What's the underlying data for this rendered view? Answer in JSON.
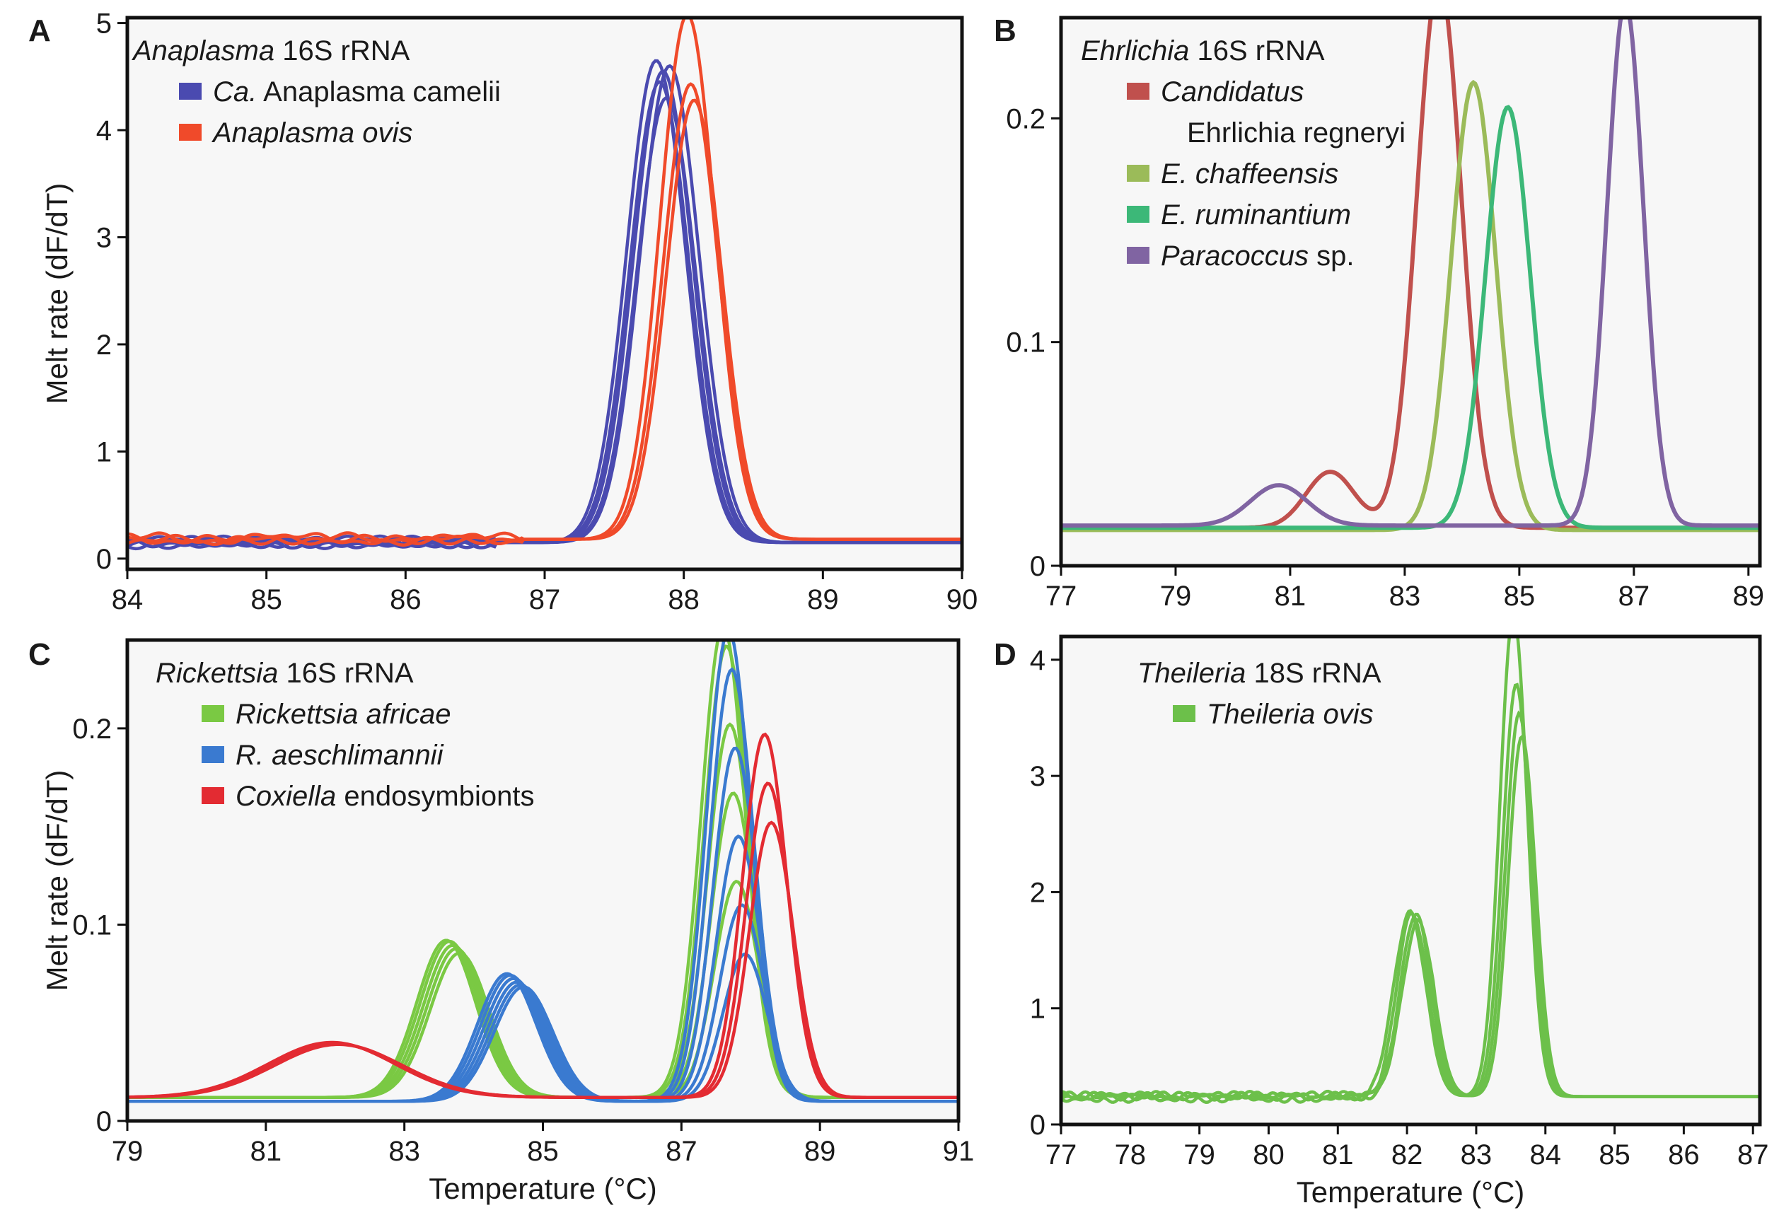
{
  "figure": {
    "description_type": "multi-panel melt curve figure"
  },
  "chart_data": [
    {
      "panel": "A",
      "type": "line",
      "title_italic": "Anaplasma",
      "title_rest": " 16S rRNA",
      "xlabel": "",
      "ylabel": "Melt rate (dF/dT)",
      "xlim": [
        84,
        90
      ],
      "ylim": [
        -0.1,
        5.05
      ],
      "xticks": [
        84,
        85,
        86,
        87,
        88,
        89,
        90
      ],
      "yticks": [
        0,
        1,
        2,
        3,
        4,
        5
      ],
      "tick_labels_x": [
        "84",
        "85",
        "86",
        "87",
        "88",
        "89",
        "90"
      ],
      "tick_labels_y": [
        "0",
        "1",
        "2",
        "3",
        "4",
        "5"
      ],
      "series": [
        {
          "name": "Ca. Anaplasma camelii",
          "name_italic": "Ca.",
          "name_rest": " Anaplasma camelii",
          "color": "#4a4ab0",
          "peaks": [
            {
              "center": 87.85,
              "height": 4.5,
              "width": 0.3
            }
          ],
          "peak_variants": [
            4.5,
            4.3,
            4.4,
            4.15,
            4.45
          ],
          "baseline": 0.15
        },
        {
          "name": "Anaplasma ovis",
          "name_italic": "Anaplasma ovis",
          "name_rest": "",
          "color": "#f04a2a",
          "peaks": [
            {
              "center": 88.05,
              "height": 4.9,
              "width": 0.28
            }
          ],
          "peak_variants": [
            4.9,
            4.25,
            4.1
          ],
          "baseline": 0.18
        }
      ]
    },
    {
      "panel": "B",
      "type": "line",
      "title_italic": "Ehrlichia",
      "title_rest": " 16S rRNA",
      "xlabel": "",
      "ylabel": "",
      "xlim": [
        77,
        89.2
      ],
      "ylim": [
        0,
        0.245
      ],
      "xticks": [
        77,
        79,
        81,
        83,
        85,
        87,
        89
      ],
      "yticks": [
        0,
        0.1,
        0.2
      ],
      "tick_labels_x": [
        "77",
        "79",
        "81",
        "83",
        "85",
        "87",
        "89"
      ],
      "tick_labels_y": [
        "0",
        "0.1",
        "0.2"
      ],
      "series": [
        {
          "name": "Candidatus Ehrlichia regneryi",
          "name_italic": "Candidatus",
          "name_line2": "Ehrlichia regneryi",
          "color": "#c0504d",
          "peaks": [
            {
              "center": 83.6,
              "height": 0.245,
              "width": 0.55
            },
            {
              "center": 81.7,
              "height": 0.025,
              "width": 0.6
            }
          ],
          "baseline": 0.017
        },
        {
          "name": "E. chaffeensis",
          "name_italic": "E. chaffeensis",
          "name_rest": "",
          "color": "#9bbb59",
          "peaks": [
            {
              "center": 84.2,
              "height": 0.2,
              "width": 0.55
            }
          ],
          "baseline": 0.016
        },
        {
          "name": "E. ruminantium",
          "name_italic": "E. ruminantium",
          "name_rest": "",
          "color": "#3cb878",
          "peaks": [
            {
              "center": 84.8,
              "height": 0.188,
              "width": 0.55
            }
          ],
          "baseline": 0.017
        },
        {
          "name": "Paracoccus sp.",
          "name_italic": "Paracoccus",
          "name_rest": " sp.",
          "color": "#8064a2",
          "peaks": [
            {
              "center": 86.85,
              "height": 0.234,
              "width": 0.45
            },
            {
              "center": 80.8,
              "height": 0.018,
              "width": 0.7
            }
          ],
          "baseline": 0.018
        }
      ]
    },
    {
      "panel": "C",
      "type": "line",
      "title_italic": "Rickettsia",
      "title_rest": " 16S rRNA",
      "xlabel": "Temperature (°C)",
      "ylabel": "Melt rate (dF/dT)",
      "xlim": [
        79,
        91
      ],
      "ylim": [
        0,
        0.245
      ],
      "xticks": [
        79,
        81,
        83,
        85,
        87,
        89,
        91
      ],
      "yticks": [
        0,
        0.1,
        0.2
      ],
      "tick_labels_x": [
        "79",
        "81",
        "83",
        "85",
        "87",
        "89",
        "91"
      ],
      "tick_labels_y": [
        "0",
        "0.1",
        "0.2"
      ],
      "series": [
        {
          "name": "Rickettsia africae",
          "name_italic": "Rickettsia africae",
          "name_rest": "",
          "color": "#7ac943",
          "peaks": [
            {
              "center": 87.7,
              "height": 0.24,
              "width": 0.45
            },
            {
              "center": 83.7,
              "height": 0.08,
              "width": 0.6
            }
          ],
          "peak_variants": [
            0.24,
            0.23,
            0.19,
            0.155,
            0.11
          ],
          "baseline": 0.012
        },
        {
          "name": "R. aeschlimannii",
          "name_italic": "R. aeschlimannii",
          "name_rest": "",
          "color": "#3a7ad0",
          "peaks": [
            {
              "center": 87.8,
              "height": 0.24,
              "width": 0.45
            },
            {
              "center": 84.6,
              "height": 0.065,
              "width": 0.6
            }
          ],
          "peak_variants": [
            0.24,
            0.22,
            0.18,
            0.135,
            0.1,
            0.075
          ],
          "baseline": 0.01
        },
        {
          "name": "Coxiella endosymbionts",
          "name_italic": "Coxiella",
          "name_rest": " endosymbionts",
          "color": "#e32b32",
          "peaks": [
            {
              "center": 88.25,
              "height": 0.185,
              "width": 0.45
            },
            {
              "center": 82.0,
              "height": 0.028,
              "width": 1.3
            }
          ],
          "peak_variants": [
            0.185,
            0.16,
            0.14
          ],
          "baseline": 0.012
        }
      ]
    },
    {
      "panel": "D",
      "type": "line",
      "title_italic": "Theileria",
      "title_rest": " 18S rRNA",
      "xlabel": "Temperature (°C)",
      "ylabel": "",
      "xlim": [
        77,
        87.1
      ],
      "ylim": [
        0,
        4.2
      ],
      "xticks": [
        77,
        78,
        79,
        80,
        81,
        82,
        83,
        84,
        85,
        86,
        87
      ],
      "yticks": [
        0,
        1,
        2,
        3,
        4
      ],
      "tick_labels_x": [
        "77",
        "78",
        "79",
        "80",
        "81",
        "82",
        "83",
        "84",
        "85",
        "86",
        "87"
      ],
      "tick_labels_y": [
        "0",
        "1",
        "2",
        "3",
        "4"
      ],
      "series": [
        {
          "name": "Theileria ovis",
          "name_italic": "Theileria ovis",
          "name_rest": "",
          "color": "#6cc04a",
          "peaks": [
            {
              "center": 83.6,
              "height": 4.15,
              "width": 0.28
            },
            {
              "center": 82.1,
              "height": 1.6,
              "width": 0.32
            }
          ],
          "peak_variants": [
            4.15,
            3.55,
            3.3,
            3.1
          ],
          "baseline": 0.24
        }
      ]
    }
  ]
}
